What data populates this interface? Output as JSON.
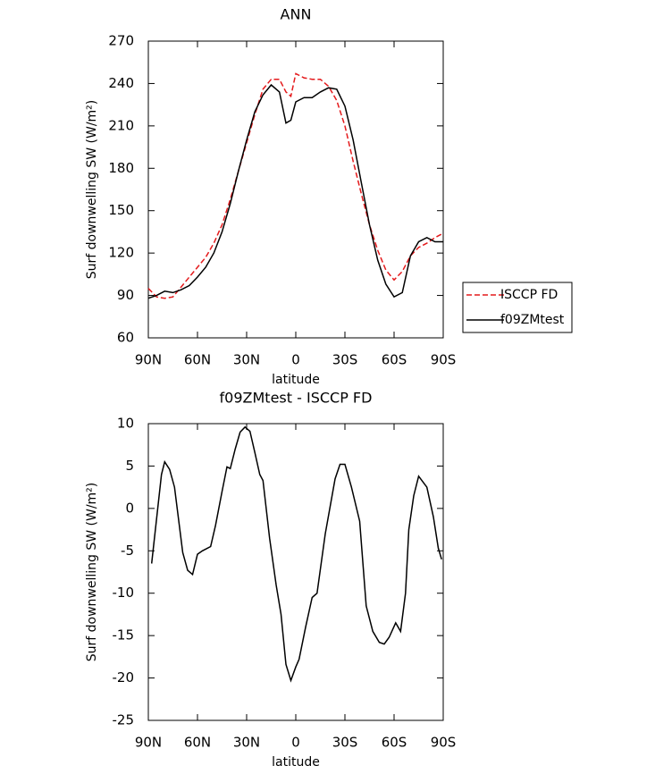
{
  "chart_data": [
    {
      "type": "line",
      "title": "ANN",
      "xlabel": "latitude",
      "ylabel": "Surf downwelling SW (W/m²)",
      "xlim": [
        90,
        -90
      ],
      "xticks": [
        {
          "value": 90,
          "label": "90N"
        },
        {
          "value": 60,
          "label": "60N"
        },
        {
          "value": 30,
          "label": "30N"
        },
        0,
        {
          "value": -30,
          "label": "30S"
        },
        {
          "value": -60,
          "label": "60S"
        },
        {
          "value": -90,
          "label": "90S"
        }
      ],
      "ylim": [
        60,
        270
      ],
      "yticks": [
        60,
        90,
        120,
        150,
        180,
        210,
        240,
        270
      ],
      "legend": "right",
      "x": [
        90,
        85,
        80,
        75,
        70,
        65,
        60,
        55,
        50,
        45,
        40,
        35,
        30,
        25,
        20,
        15,
        10,
        6,
        3,
        0,
        -5,
        -10,
        -15,
        -20,
        -25,
        -30,
        -35,
        -40,
        -45,
        -50,
        -55,
        -60,
        -65,
        -70,
        -75,
        -80,
        -85,
        -90
      ],
      "series": [
        {
          "name": "ISCCP FD",
          "color": "#e41a1c",
          "dashed": true,
          "values": [
            95,
            89,
            88,
            89,
            96,
            103,
            110,
            117,
            127,
            140,
            158,
            178,
            198,
            218,
            236,
            243,
            243,
            234,
            231,
            247,
            244,
            243,
            243,
            238,
            228,
            210,
            185,
            162,
            140,
            122,
            108,
            101,
            107,
            118,
            124,
            127,
            131,
            134
          ]
        },
        {
          "name": "f09ZMtest",
          "color": "#000000",
          "dashed": false,
          "values": [
            88,
            90,
            93,
            92,
            94,
            97,
            103,
            110,
            120,
            135,
            155,
            178,
            200,
            220,
            232,
            239,
            234,
            212,
            214,
            227,
            230,
            230,
            234,
            237,
            236,
            224,
            200,
            170,
            140,
            115,
            98,
            89,
            92,
            118,
            128,
            131,
            128,
            128
          ]
        }
      ]
    },
    {
      "type": "line",
      "title": "f09ZMtest - ISCCP FD",
      "xlabel": "latitude",
      "ylabel": "Surf downwelling SW (W/m²)",
      "xlim": [
        90,
        -90
      ],
      "xticks": [
        {
          "value": 90,
          "label": "90N"
        },
        {
          "value": 60,
          "label": "60N"
        },
        {
          "value": 30,
          "label": "30N"
        },
        0,
        {
          "value": -30,
          "label": "30S"
        },
        {
          "value": -60,
          "label": "60S"
        },
        {
          "value": -90,
          "label": "90S"
        }
      ],
      "ylim": [
        -25,
        10
      ],
      "yticks": [
        -25,
        -20,
        -15,
        -10,
        -5,
        0,
        5,
        10
      ],
      "x": [
        88,
        82,
        80,
        77,
        74,
        69,
        66,
        63,
        60,
        57,
        52,
        49,
        45,
        42,
        40,
        37,
        34,
        31,
        28,
        25,
        22,
        20,
        16,
        12,
        9,
        6,
        3,
        0,
        -2,
        -6,
        -10,
        -13,
        -18,
        -24,
        -27,
        -30,
        -34,
        -39,
        -43,
        -47,
        -51,
        -54,
        -57,
        -61,
        -64,
        -67,
        -69,
        -72,
        -75,
        -80,
        -84,
        -87,
        -89
      ],
      "series": [
        {
          "color": "#000000",
          "values": [
            -6.5,
            4,
            5.5,
            4.6,
            2.5,
            -5.2,
            -7.3,
            -7.8,
            -5.4,
            -5,
            -4.5,
            -2,
            2,
            4.9,
            4.7,
            7,
            9,
            9.6,
            9.1,
            6.6,
            4,
            3.3,
            -3.5,
            -9,
            -12.5,
            -18.4,
            -20.3,
            -18.7,
            -17.8,
            -14,
            -10.5,
            -10,
            -3,
            3.5,
            5.2,
            5.2,
            2.5,
            -1.5,
            -11.5,
            -14.5,
            -15.8,
            -16,
            -15.2,
            -13.5,
            -14.5,
            -10,
            -2.5,
            1.5,
            3.8,
            2.5,
            -1,
            -4.7,
            -6
          ]
        }
      ]
    }
  ]
}
